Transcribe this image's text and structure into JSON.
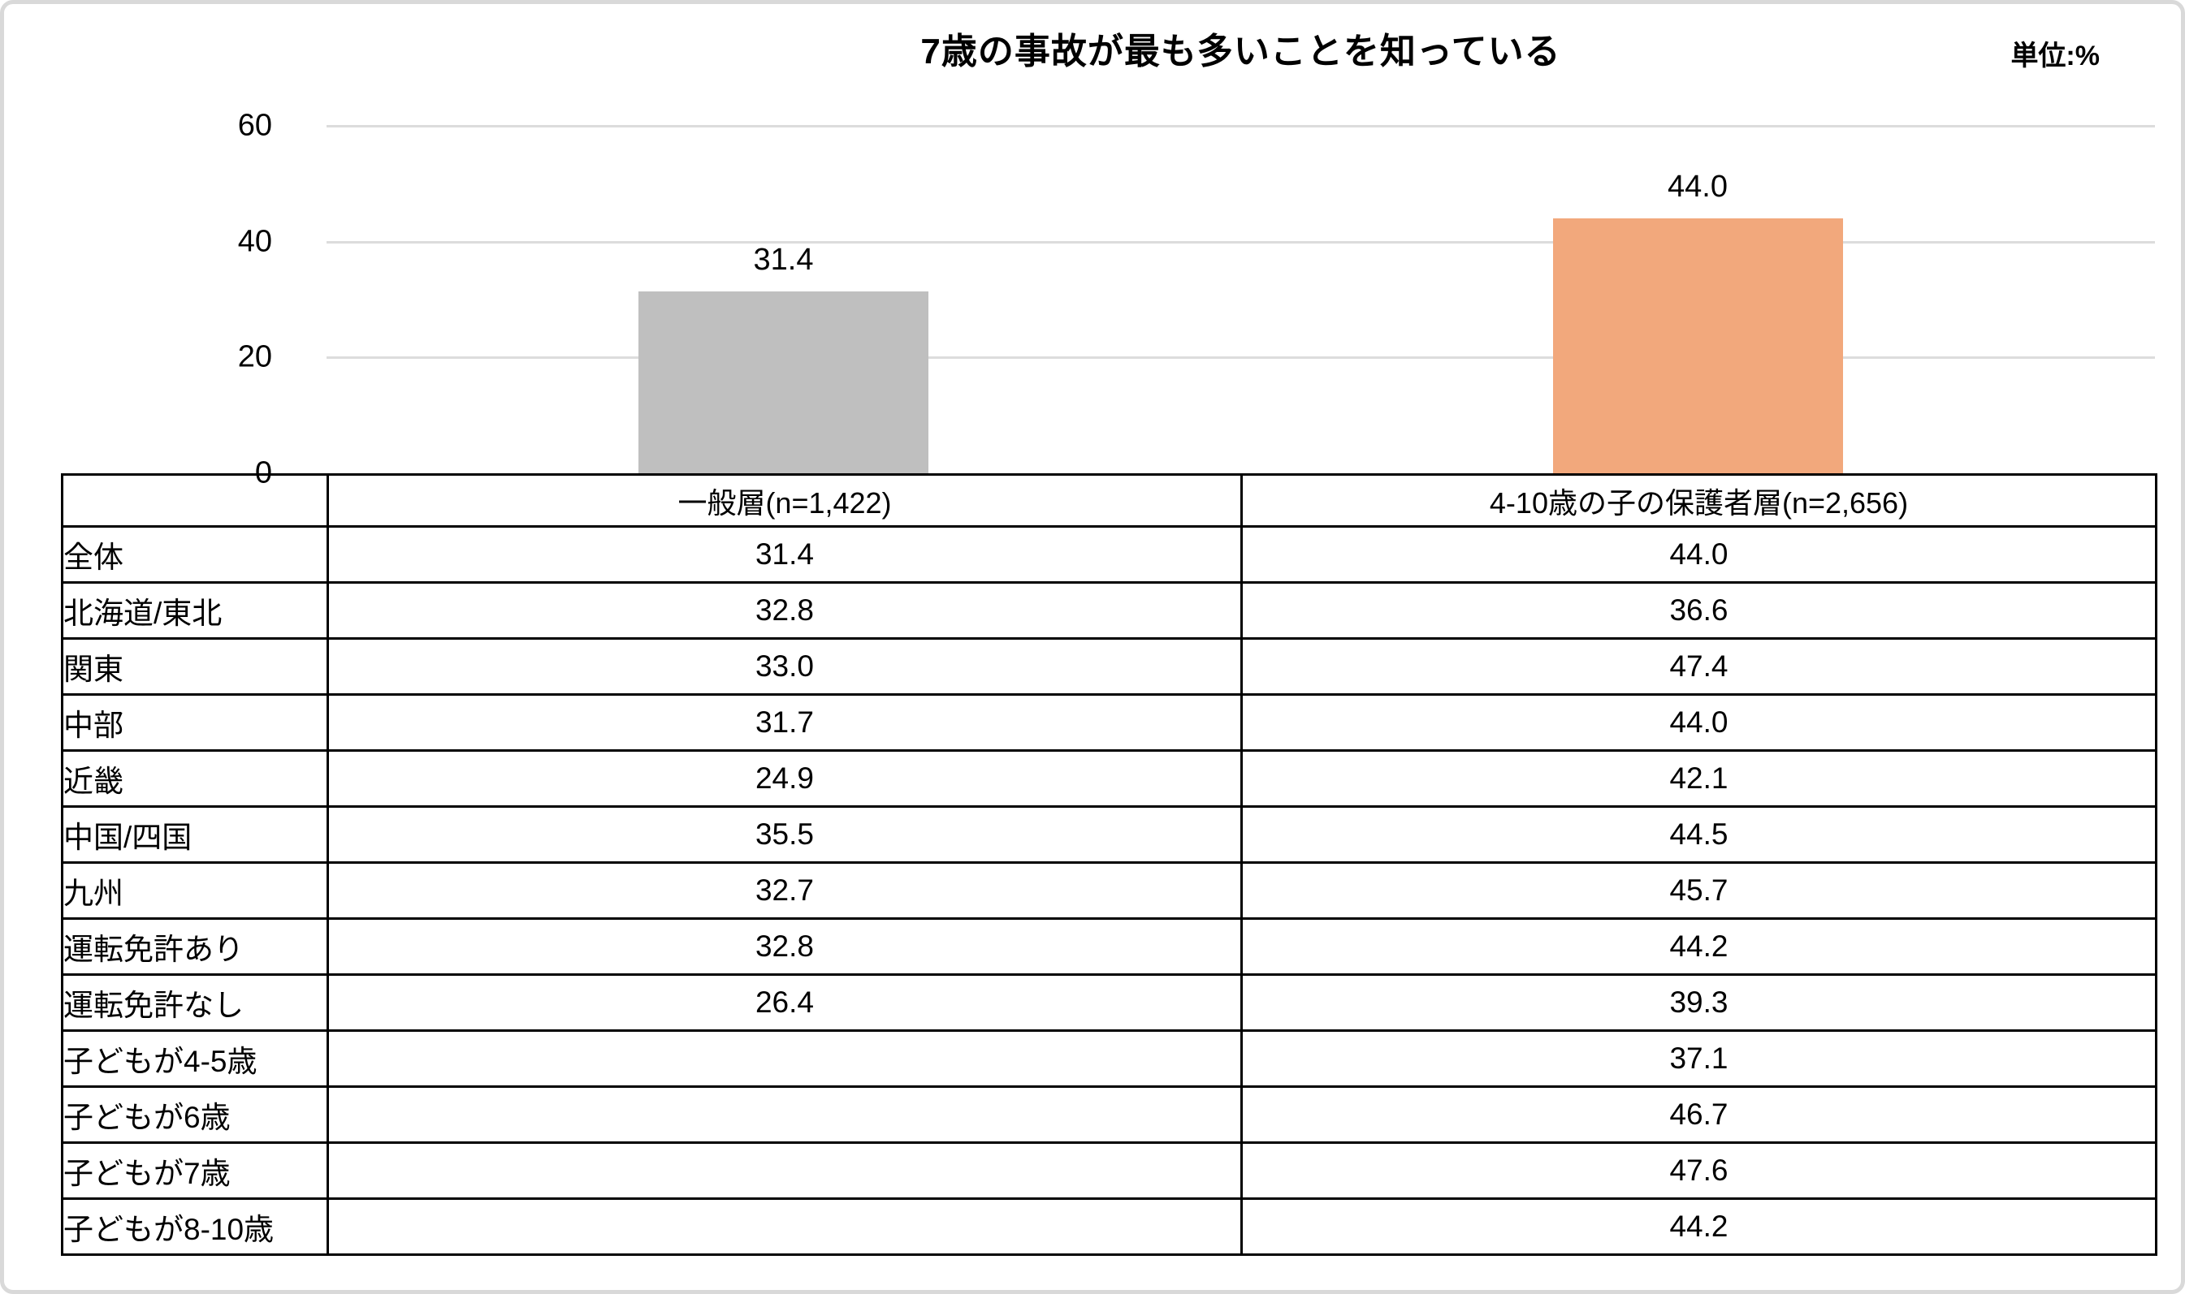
{
  "page": {
    "title": "7歳の事故が最も多いことを知っている",
    "unit_label": "単位:%"
  },
  "chart_data": {
    "type": "bar",
    "title": "7歳の事故が最も多いことを知っている",
    "unit": "単位:%",
    "categories": [
      "一般層(n=1,422)",
      "4-10歳の子の保護者層(n=2,656)"
    ],
    "values": [
      31.4,
      44.0
    ],
    "data_labels": [
      "31.4",
      "44.0"
    ],
    "bar_colors": [
      "#BFBFBF",
      "#F2A87C"
    ],
    "ylim": [
      0,
      60
    ],
    "yticks": [
      0,
      20,
      40,
      60
    ],
    "grid": true,
    "legend_position": "none",
    "gridline_color": "#dcdcdc",
    "axis_color": "#000000"
  },
  "table": {
    "col_headers": [
      "一般層(n=1,422)",
      "4-10歳の子の保護者層(n=2,656)"
    ],
    "rows": [
      {
        "label": "全体",
        "general": "31.4",
        "guardian": "44.0"
      },
      {
        "label": "北海道/東北",
        "general": "32.8",
        "guardian": "36.6"
      },
      {
        "label": "関東",
        "general": "33.0",
        "guardian": "47.4"
      },
      {
        "label": "中部",
        "general": "31.7",
        "guardian": "44.0"
      },
      {
        "label": "近畿",
        "general": "24.9",
        "guardian": "42.1"
      },
      {
        "label": "中国/四国",
        "general": "35.5",
        "guardian": "44.5"
      },
      {
        "label": "九州",
        "general": "32.7",
        "guardian": "45.7"
      },
      {
        "label": "運転免許あり",
        "general": "32.8",
        "guardian": "44.2"
      },
      {
        "label": "運転免許なし",
        "general": "26.4",
        "guardian": "39.3"
      },
      {
        "label": "子どもが4-5歳",
        "general": "",
        "guardian": "37.1"
      },
      {
        "label": "子どもが6歳",
        "general": "",
        "guardian": "46.7"
      },
      {
        "label": "子どもが7歳",
        "general": "",
        "guardian": "47.6"
      },
      {
        "label": "子どもが8-10歳",
        "general": "",
        "guardian": "44.2"
      }
    ]
  }
}
